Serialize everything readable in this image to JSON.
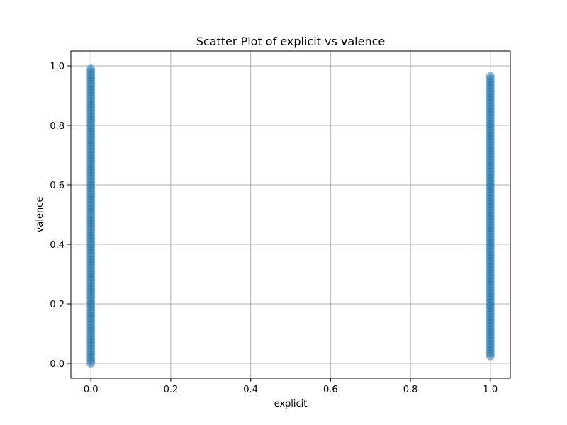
{
  "chart_data": {
    "type": "scatter",
    "title": "Scatter Plot of explicit vs valence",
    "xlabel": "explicit",
    "ylabel": "valence",
    "xlim": [
      -0.05,
      1.05
    ],
    "ylim": [
      -0.05,
      1.05
    ],
    "xticks": [
      0.0,
      0.2,
      0.4,
      0.6,
      0.8,
      1.0
    ],
    "yticks": [
      0.0,
      0.2,
      0.4,
      0.6,
      0.8,
      1.0
    ],
    "xtick_labels": [
      "0.0",
      "0.2",
      "0.4",
      "0.6",
      "0.8",
      "1.0"
    ],
    "ytick_labels": [
      "0.0",
      "0.2",
      "0.4",
      "0.6",
      "0.8",
      "1.0"
    ],
    "grid": true,
    "color": "#1f77b4",
    "series": [
      {
        "x": [
          0,
          0,
          0,
          0,
          0,
          0,
          0,
          0,
          0,
          0,
          0,
          0,
          0,
          0,
          0,
          0,
          0,
          0,
          0,
          0,
          0,
          0,
          0,
          0,
          0,
          0,
          0,
          0,
          0,
          0,
          0,
          0,
          0,
          0,
          0,
          0,
          0,
          0,
          0,
          0,
          0,
          0,
          0,
          0,
          0,
          0,
          0,
          0,
          0,
          0,
          0,
          0,
          0,
          0,
          0,
          0,
          0,
          0,
          0,
          0,
          0,
          0,
          0,
          0,
          0,
          0,
          0,
          0,
          0,
          0,
          0,
          0,
          0,
          0,
          0,
          0,
          0,
          0,
          0,
          0,
          0,
          0,
          0,
          0,
          0,
          0,
          0,
          0,
          0,
          0,
          0,
          0,
          0,
          0,
          0,
          0,
          0,
          0,
          0,
          0,
          1,
          1,
          1,
          1,
          1,
          1,
          1,
          1,
          1,
          1,
          1,
          1,
          1,
          1,
          1,
          1,
          1,
          1,
          1,
          1,
          1,
          1,
          1,
          1,
          1,
          1,
          1,
          1,
          1,
          1,
          1,
          1,
          1,
          1,
          1,
          1,
          1,
          1,
          1,
          1,
          1,
          1,
          1,
          1,
          1,
          1,
          1,
          1,
          1,
          1,
          1,
          1,
          1,
          1,
          1,
          1,
          1,
          1,
          1,
          1,
          1,
          1,
          1,
          1,
          1,
          1,
          1,
          1,
          1,
          1,
          1,
          1,
          1,
          1,
          1,
          1,
          1,
          1,
          1,
          1,
          1,
          1,
          1,
          1,
          1,
          1,
          1,
          1,
          1,
          1,
          1,
          1,
          1,
          1,
          1
        ],
        "y": [
          0.0,
          0.01,
          0.02,
          0.03,
          0.04,
          0.05,
          0.06,
          0.07,
          0.08,
          0.09,
          0.1,
          0.11,
          0.12,
          0.13,
          0.14,
          0.15,
          0.16,
          0.17,
          0.18,
          0.19,
          0.2,
          0.21,
          0.22,
          0.23,
          0.24,
          0.25,
          0.26,
          0.27,
          0.28,
          0.29,
          0.3,
          0.31,
          0.32,
          0.33,
          0.34,
          0.35,
          0.36,
          0.37,
          0.38,
          0.39,
          0.4,
          0.41,
          0.42,
          0.43,
          0.44,
          0.45,
          0.46,
          0.47,
          0.48,
          0.49,
          0.5,
          0.51,
          0.52,
          0.53,
          0.54,
          0.55,
          0.56,
          0.57,
          0.58,
          0.59,
          0.6,
          0.61,
          0.62,
          0.63,
          0.64,
          0.65,
          0.66,
          0.67,
          0.68,
          0.69,
          0.7,
          0.71,
          0.72,
          0.73,
          0.74,
          0.75,
          0.76,
          0.77,
          0.78,
          0.79,
          0.8,
          0.81,
          0.82,
          0.83,
          0.84,
          0.85,
          0.86,
          0.87,
          0.88,
          0.89,
          0.9,
          0.91,
          0.92,
          0.93,
          0.94,
          0.95,
          0.96,
          0.97,
          0.98,
          0.99,
          0.025,
          0.035,
          0.045,
          0.055,
          0.065,
          0.075,
          0.085,
          0.095,
          0.105,
          0.115,
          0.125,
          0.135,
          0.145,
          0.155,
          0.165,
          0.175,
          0.185,
          0.195,
          0.205,
          0.215,
          0.225,
          0.235,
          0.245,
          0.255,
          0.265,
          0.275,
          0.285,
          0.295,
          0.305,
          0.315,
          0.325,
          0.335,
          0.345,
          0.355,
          0.365,
          0.375,
          0.385,
          0.395,
          0.405,
          0.415,
          0.425,
          0.435,
          0.445,
          0.455,
          0.465,
          0.475,
          0.485,
          0.495,
          0.505,
          0.515,
          0.525,
          0.535,
          0.545,
          0.555,
          0.565,
          0.575,
          0.585,
          0.595,
          0.605,
          0.615,
          0.625,
          0.635,
          0.645,
          0.655,
          0.665,
          0.675,
          0.685,
          0.695,
          0.705,
          0.715,
          0.725,
          0.735,
          0.745,
          0.755,
          0.765,
          0.775,
          0.785,
          0.795,
          0.805,
          0.815,
          0.825,
          0.835,
          0.845,
          0.855,
          0.865,
          0.875,
          0.885,
          0.895,
          0.905,
          0.915,
          0.925,
          0.935,
          0.945,
          0.955,
          0.965
        ]
      }
    ]
  }
}
